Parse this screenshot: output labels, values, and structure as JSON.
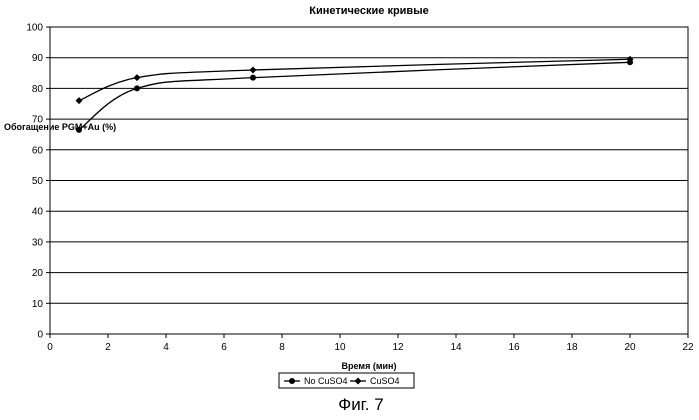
{
  "chart_data": {
    "type": "line",
    "title": "Кинетические кривые",
    "xlabel": "Время (мин)",
    "ylabel": "Обогащение PGM+Au (%)",
    "xlim": [
      0,
      22
    ],
    "ylim": [
      0,
      100
    ],
    "x_ticks": [
      "0",
      "2",
      "4",
      "6",
      "8",
      "10",
      "12",
      "14",
      "16",
      "18",
      "20",
      "22"
    ],
    "y_ticks": [
      "0",
      "10",
      "20",
      "30",
      "40",
      "50",
      "60",
      "70",
      "80",
      "90",
      "100"
    ],
    "grid": "horizontal",
    "legend_position": "bottom",
    "series": [
      {
        "name": "No CuSO4",
        "marker": "circle",
        "color": "#000000",
        "x": [
          1,
          3,
          7,
          20
        ],
        "y": [
          66.5,
          80,
          83.5,
          88.5
        ]
      },
      {
        "name": "CuSO4",
        "marker": "diamond",
        "color": "#000000",
        "x": [
          1,
          3,
          7,
          20
        ],
        "y": [
          76,
          83.5,
          86,
          89.5
        ]
      }
    ]
  },
  "caption": "Фиг. 7"
}
